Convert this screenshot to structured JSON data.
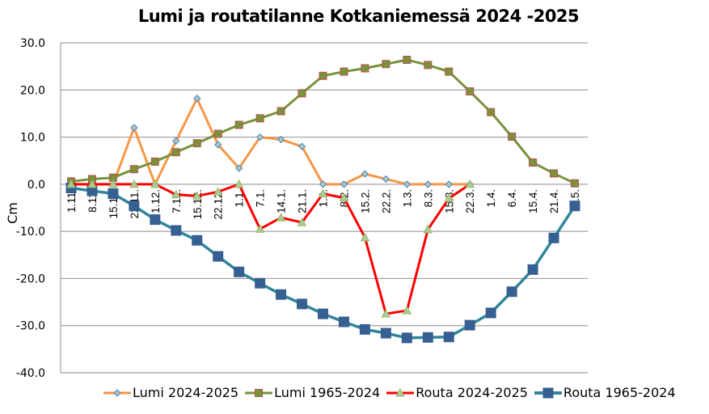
{
  "chart_data": {
    "type": "line",
    "title": "Lumi ja routatilanne Kotkaniemessä 2024  -2025",
    "xlabel": "",
    "ylabel": "Cm",
    "ylim": [
      -40,
      30
    ],
    "yticks": [
      "30.0",
      "20.0",
      "10.0",
      "0.0",
      "-10.0",
      "-20.0",
      "-30.0",
      "-40.0"
    ],
    "grid": true,
    "legend_position": "bottom",
    "categories": [
      "1.11.",
      "8.11.",
      "15.11.",
      "22.11.",
      "1.12.",
      "7.12.",
      "15.12.",
      "22.12.",
      "1.1.",
      "7.1.",
      "14.1.",
      "21.1.",
      "1.2.",
      "8.2.",
      "15.2.",
      "22.2.",
      "1.3.",
      "8.3.",
      "15.3.",
      "22.3.",
      "1.4.",
      "6.4.",
      "15.4.",
      "21.4.",
      "1.5."
    ],
    "series": [
      {
        "name": "Lumi 2024-2025",
        "color": "#F79646",
        "marker": "diamond",
        "marker_fill": "#A9C9C0",
        "marker_stroke": "#4F81BD",
        "values": [
          0,
          0,
          0,
          12.0,
          0,
          9.2,
          18.2,
          8.4,
          3.4,
          10.0,
          9.5,
          8.0,
          0,
          0,
          2.2,
          1.1,
          0,
          0,
          0,
          0,
          null,
          null,
          null,
          null,
          null
        ]
      },
      {
        "name": "Lumi 1965-2024",
        "color": "#77933C",
        "marker": "square",
        "marker_fill": "#77933C",
        "marker_stroke": "#C0504D",
        "values": [
          0.6,
          1.1,
          1.4,
          3.2,
          4.8,
          6.8,
          8.7,
          10.7,
          12.6,
          14.0,
          15.5,
          19.3,
          23.0,
          23.9,
          24.6,
          25.5,
          26.4,
          25.3,
          23.9,
          19.7,
          15.3,
          10.1,
          4.6,
          2.3,
          0.2
        ]
      },
      {
        "name": "Routa 2024-2025",
        "color": "#FF0000",
        "marker": "triangle",
        "marker_fill": "#A9C9A0",
        "marker_stroke": "#9BBB59",
        "values": [
          0,
          0,
          0,
          0,
          0,
          -2.2,
          -2.5,
          -1.6,
          0,
          -9.5,
          -7.1,
          -8.1,
          -2.0,
          -2.9,
          -11.3,
          -27.5,
          -26.8,
          -9.6,
          -3.0,
          0,
          null,
          null,
          null,
          null,
          null
        ]
      },
      {
        "name": "Routa 1965-2024",
        "color": "#31859C",
        "marker": "square",
        "marker_fill": "#376092",
        "marker_stroke": "#376092",
        "values": [
          -0.8,
          -1.4,
          -2.0,
          -4.6,
          -7.5,
          -9.8,
          -11.9,
          -15.3,
          -18.6,
          -21.0,
          -23.4,
          -25.4,
          -27.5,
          -29.2,
          -30.8,
          -31.6,
          -32.6,
          -32.5,
          -32.4,
          -29.9,
          -27.3,
          -22.8,
          -18.1,
          -11.4,
          -4.6
        ]
      }
    ]
  }
}
